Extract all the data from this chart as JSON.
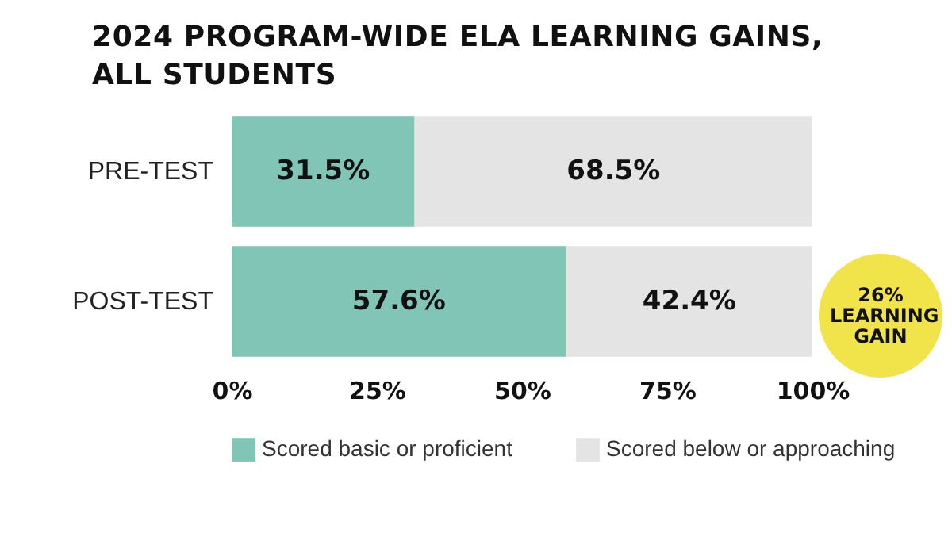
{
  "chart_data": {
    "type": "bar",
    "orientation": "horizontal",
    "stacked": true,
    "title": "2024 PROGRAM-WIDE ELA LEARNING GAINS, ALL STUDENTS",
    "categories": [
      "PRE-TEST",
      "POST-TEST"
    ],
    "series": [
      {
        "name": "Scored basic or proficient",
        "color": "#80c5b5",
        "values": [
          31.5,
          57.6
        ],
        "value_labels": [
          "31.5%",
          "57.6%"
        ]
      },
      {
        "name": "Scored below or approaching",
        "color": "#e4e4e4",
        "values": [
          68.5,
          42.4
        ],
        "value_labels": [
          "68.5%",
          "42.4%"
        ]
      }
    ],
    "xlim": [
      0,
      100
    ],
    "xticks": [
      {
        "value": 0,
        "label": "0%"
      },
      {
        "value": 25,
        "label": "25%"
      },
      {
        "value": 50,
        "label": "50%"
      },
      {
        "value": 75,
        "label": "75%"
      },
      {
        "value": 100,
        "label": "100%"
      }
    ],
    "grid": false,
    "legend": "bottom",
    "annotations": [
      "26% LEARNING GAIN"
    ]
  }
}
